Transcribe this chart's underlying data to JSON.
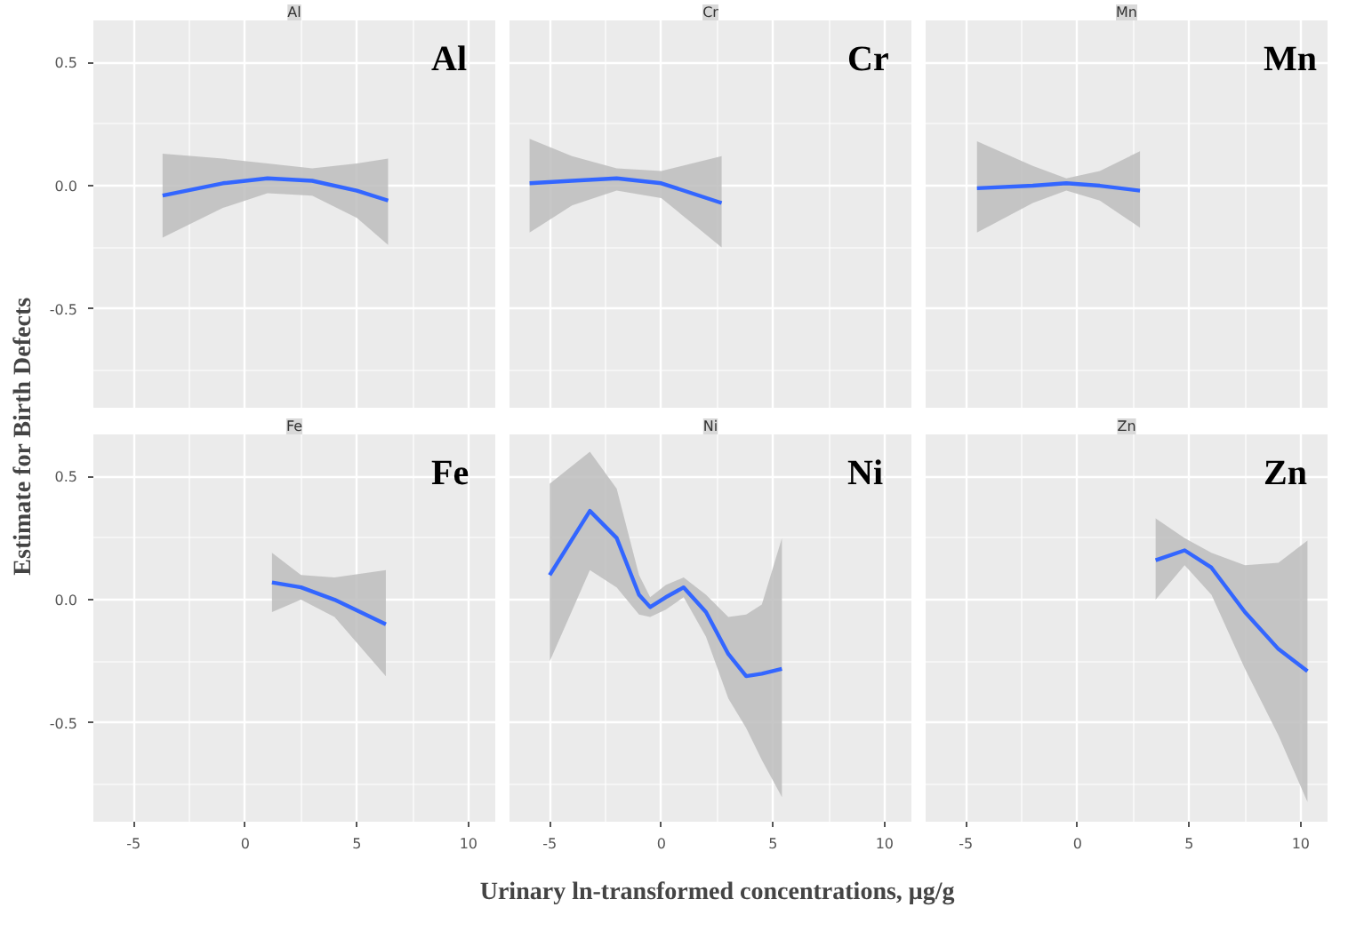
{
  "chart_data": [
    {
      "type": "line",
      "title": "Al",
      "annotations": [
        "Al"
      ],
      "ylabel": "Estimate for Birth Defects",
      "xlim": [
        -6.8,
        11.2
      ],
      "ylim": [
        -0.9,
        0.67
      ],
      "xticks": [
        -5,
        0,
        5,
        10
      ],
      "yticks": [
        -0.5,
        {
          "value": 0,
          "label": "0.0"
        },
        0.5
      ],
      "grid": true,
      "tick_labels": "y",
      "series": [
        {
          "color": "#3366ff",
          "x": [
            -3.7,
            -1,
            1,
            3,
            5,
            6.4
          ],
          "values": [
            -0.04,
            0.01,
            0.03,
            0.02,
            -0.02,
            -0.06
          ],
          "upper": [
            0.13,
            0.11,
            0.09,
            0.07,
            0.09,
            0.11
          ],
          "lower": [
            -0.21,
            -0.09,
            -0.03,
            -0.04,
            -0.13,
            -0.24
          ]
        }
      ]
    },
    {
      "type": "line",
      "title": "Cr",
      "annotations": [
        "Cr"
      ],
      "xlim": [
        -6.8,
        11.2
      ],
      "ylim": [
        -0.9,
        0.67
      ],
      "xticks": [
        -5,
        0,
        5,
        10
      ],
      "yticks": [
        -0.5,
        0,
        0.5
      ],
      "grid": true,
      "tick_labels": false,
      "series": [
        {
          "color": "#3366ff",
          "x": [
            -5.9,
            -4,
            -2,
            0,
            2.7
          ],
          "values": [
            0.01,
            0.02,
            0.03,
            0.01,
            -0.07
          ],
          "upper": [
            0.19,
            0.12,
            0.07,
            0.06,
            0.12
          ],
          "lower": [
            -0.19,
            -0.08,
            -0.02,
            -0.05,
            -0.25
          ]
        }
      ]
    },
    {
      "type": "line",
      "title": "Mn",
      "annotations": [
        "Mn"
      ],
      "xlim": [
        -6.8,
        11.2
      ],
      "ylim": [
        -0.9,
        0.67
      ],
      "xticks": [
        -5,
        0,
        5,
        10
      ],
      "yticks": [
        -0.5,
        0,
        0.5
      ],
      "grid": true,
      "tick_labels": false,
      "series": [
        {
          "color": "#3366ff",
          "x": [
            -4.5,
            -2,
            -0.5,
            1,
            2.8
          ],
          "values": [
            -0.01,
            0.0,
            0.01,
            0.0,
            -0.02
          ],
          "upper": [
            0.18,
            0.08,
            0.03,
            0.06,
            0.14
          ],
          "lower": [
            -0.19,
            -0.07,
            -0.02,
            -0.06,
            -0.17
          ]
        }
      ]
    },
    {
      "type": "line",
      "title": "Fe",
      "annotations": [
        "Fe"
      ],
      "xlim": [
        -6.8,
        11.2
      ],
      "ylim": [
        -0.9,
        0.67
      ],
      "xticks": [
        -5,
        0,
        5,
        10
      ],
      "yticks": [
        -0.5,
        {
          "value": 0,
          "label": "0.0"
        },
        0.5
      ],
      "grid": true,
      "series": [
        {
          "color": "#3366ff",
          "x": [
            1.2,
            2.5,
            4,
            6.3
          ],
          "values": [
            0.07,
            0.05,
            0.0,
            -0.1
          ],
          "upper": [
            0.19,
            0.1,
            0.09,
            0.12
          ],
          "lower": [
            -0.05,
            0.0,
            -0.07,
            -0.31
          ]
        }
      ]
    },
    {
      "type": "line",
      "title": "Ni",
      "annotations": [
        "Ni"
      ],
      "xlabel": "Urinary ln-transformed concentrations, μg/g",
      "xlim": [
        -6.8,
        11.2
      ],
      "ylim": [
        -0.9,
        0.67
      ],
      "xticks": [
        -5,
        0,
        5,
        10
      ],
      "yticks": [
        -0.5,
        0,
        0.5
      ],
      "grid": true,
      "tick_labels": "x",
      "series": [
        {
          "color": "#3366ff",
          "x": [
            -5,
            -3.2,
            -2,
            -1,
            -0.5,
            0.2,
            1,
            2,
            3,
            3.8,
            4.5,
            5.4
          ],
          "values": [
            0.1,
            0.36,
            0.25,
            0.02,
            -0.03,
            0.01,
            0.05,
            -0.05,
            -0.22,
            -0.31,
            -0.3,
            -0.28
          ],
          "upper": [
            0.47,
            0.6,
            0.45,
            0.1,
            0.01,
            0.06,
            0.09,
            0.02,
            -0.07,
            -0.06,
            -0.02,
            0.25
          ],
          "lower": [
            -0.25,
            0.12,
            0.05,
            -0.06,
            -0.07,
            -0.04,
            0.01,
            -0.15,
            -0.4,
            -0.52,
            -0.65,
            -0.8
          ]
        }
      ]
    },
    {
      "type": "line",
      "title": "Zn",
      "annotations": [
        "Zn"
      ],
      "xlim": [
        -6.8,
        11.2
      ],
      "ylim": [
        -0.9,
        0.67
      ],
      "xticks": [
        -5,
        0,
        5,
        10
      ],
      "yticks": [
        -0.5,
        0,
        0.5
      ],
      "grid": true,
      "tick_labels": "x",
      "series": [
        {
          "color": "#3366ff",
          "x": [
            3.5,
            4.8,
            6,
            7.5,
            9,
            10.3
          ],
          "values": [
            0.16,
            0.2,
            0.13,
            -0.05,
            -0.2,
            -0.29
          ],
          "upper": [
            0.33,
            0.25,
            0.19,
            0.14,
            0.15,
            0.24
          ],
          "lower": [
            0.0,
            0.14,
            0.02,
            -0.28,
            -0.55,
            -0.82
          ]
        }
      ]
    }
  ]
}
